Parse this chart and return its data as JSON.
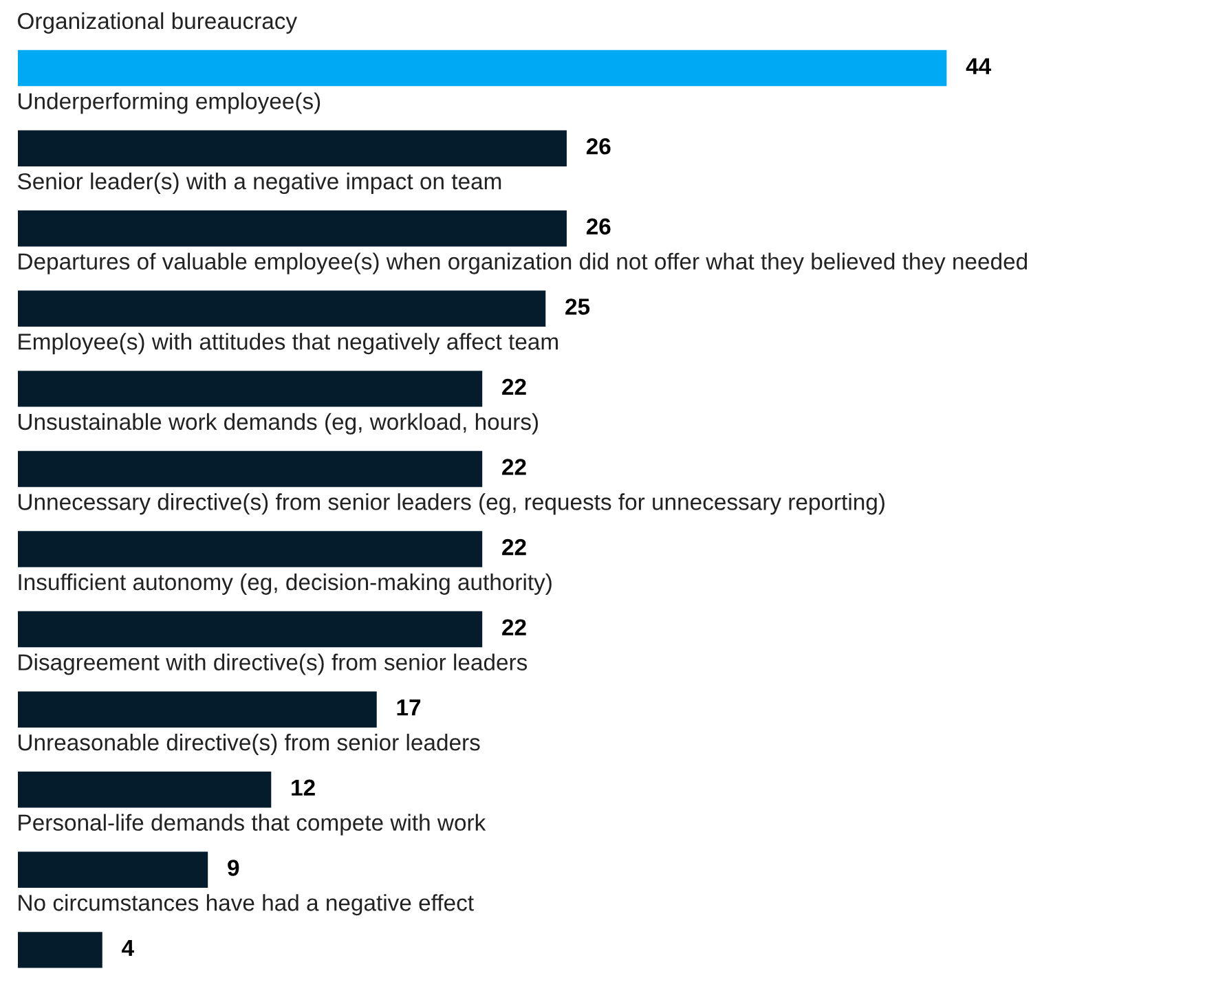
{
  "chart_data": {
    "type": "bar",
    "orientation": "horizontal",
    "data_labels": true,
    "grid": false,
    "legend": false,
    "tick_labels": false,
    "categories": [
      "Organizational bureaucracy",
      "Underperforming employee(s)",
      "Senior leader(s) with a negative impact on team",
      "Departures of valuable employee(s) when organization did not offer what they believed they needed",
      "Employee(s) with attitudes that negatively affect team",
      "Unsustainable work demands (eg, workload, hours)",
      "Unnecessary directive(s) from senior leaders (eg, requests for unnecessary reporting)",
      "Insufficient autonomy (eg, decision-making authority)",
      "Disagreement with directive(s) from senior leaders",
      "Unreasonable directive(s) from senior leaders",
      "Personal-life demands that compete with work",
      "No circumstances have had a negative effect"
    ],
    "values": [
      44,
      26,
      26,
      25,
      22,
      22,
      22,
      22,
      17,
      12,
      9,
      4
    ],
    "colors": [
      "#00a9f4",
      "#051c2c",
      "#051c2c",
      "#051c2c",
      "#051c2c",
      "#051c2c",
      "#051c2c",
      "#051c2c",
      "#051c2c",
      "#051c2c",
      "#051c2c",
      "#051c2c"
    ]
  }
}
